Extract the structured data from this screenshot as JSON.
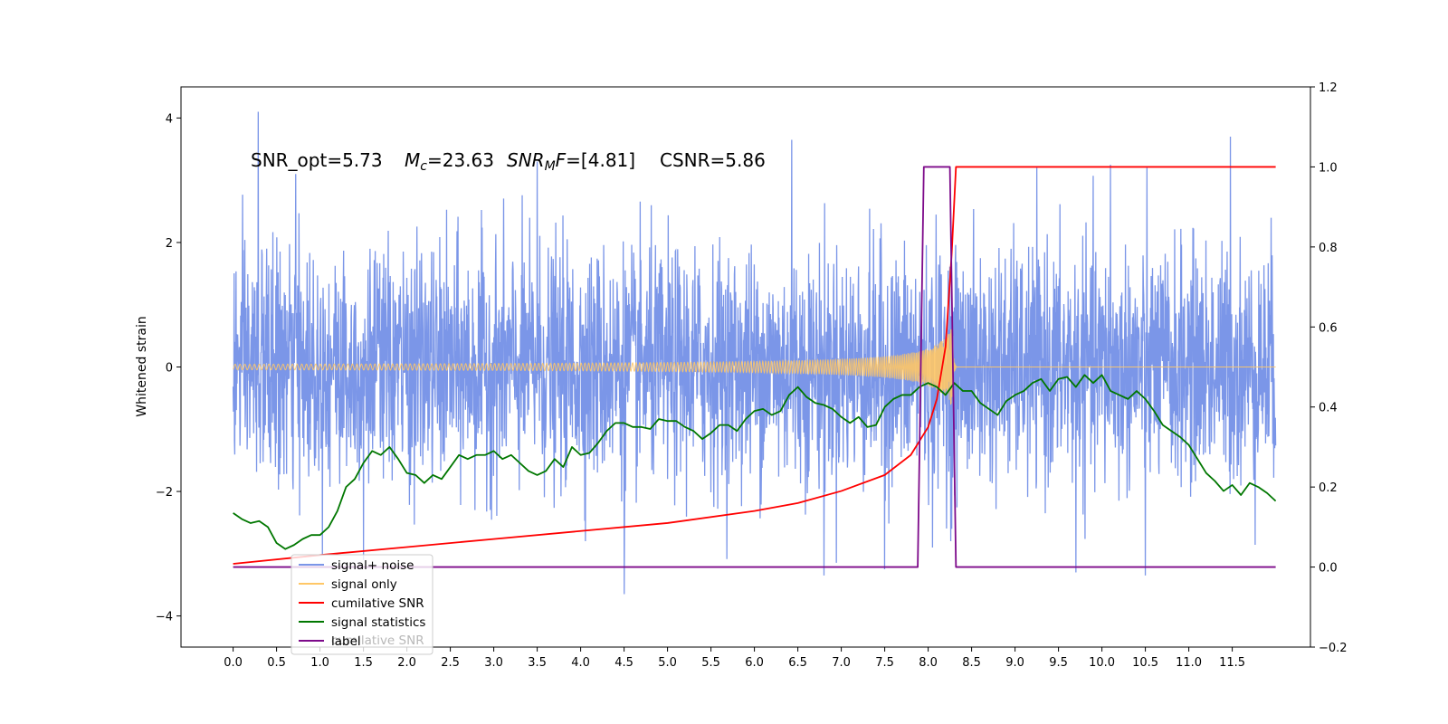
{
  "chart_data": {
    "type": "line",
    "xlabel": "",
    "ylabel": "Whitened strain",
    "xlim": [
      -0.6,
      12.4
    ],
    "ylim": [
      -4.5,
      4.5
    ],
    "y2lim": [
      -0.2,
      1.2
    ],
    "x_ticks": [
      "0.0",
      "0.5",
      "1.0",
      "1.5",
      "2.0",
      "2.5",
      "3.0",
      "3.5",
      "4.0",
      "4.5",
      "5.0",
      "5.5",
      "6.0",
      "6.5",
      "7.0",
      "7.5",
      "8.0",
      "8.5",
      "9.0",
      "9.5",
      "10.0",
      "10.5",
      "11.0",
      "11.5"
    ],
    "y_ticks": [
      "4",
      "2",
      "0",
      "−2",
      "−4"
    ],
    "y2_ticks": [
      "1.2",
      "1.0",
      "0.8",
      "0.6",
      "0.4",
      "0.2",
      "0.0",
      "−0.2"
    ],
    "annotation": {
      "snr_opt": "SNR_opt=5.73",
      "mc_symbol": "M",
      "mc_sub": "c",
      "mc_value": "=23.63",
      "snr_mf_symbol": "SNR",
      "snr_mf_sub": "M",
      "snr_mf_f": "F",
      "snr_mf_value": "=[4.81]",
      "csnr": "CSNR=5.86"
    },
    "legend": {
      "placement": "lower-left",
      "ghost_text": "cumilative SNR",
      "entries": [
        {
          "label": "signal+ noise",
          "color": "#7b96e8"
        },
        {
          "label": "signal only",
          "color": "#ffc766"
        },
        {
          "label": "cumilative SNR",
          "color": "#ff0000"
        },
        {
          "label": "signal statistics",
          "color": "#007700"
        },
        {
          "label": "label",
          "color": "#7d0a8a"
        }
      ]
    },
    "series": [
      {
        "name": "signal+ noise",
        "axis": "left",
        "color": "#7b96e8",
        "x_range": [
          0,
          12.0
        ],
        "description_values": {
          "typical_std": 1.0,
          "max_peak": 4.1,
          "min_peak": -3.65
        },
        "peaks": [
          {
            "x": 0.29,
            "y": 4.1
          },
          {
            "x": 6.43,
            "y": 3.65
          },
          {
            "x": 11.48,
            "y": 3.7
          },
          {
            "x": 3.5,
            "y": 3.3
          },
          {
            "x": 10.1,
            "y": 3.25
          },
          {
            "x": 0.72,
            "y": 3.1
          },
          {
            "x": 4.5,
            "y": -3.65
          },
          {
            "x": 6.8,
            "y": -3.35
          },
          {
            "x": 10.5,
            "y": -3.35
          },
          {
            "x": 7.5,
            "y": -3.25
          },
          {
            "x": 9.7,
            "y": -3.3
          },
          {
            "x": 1.5,
            "y": -3.1
          },
          {
            "x": 8.05,
            "y": -2.9
          },
          {
            "x": 8.27,
            "y": -2.6
          }
        ]
      },
      {
        "name": "signal only",
        "axis": "left",
        "color": "#ffc766",
        "chirp": {
          "start": 0.0,
          "merger": 8.27,
          "end": 12.0,
          "peak_amplitude": 0.62
        }
      },
      {
        "name": "cumilative SNR",
        "axis": "right",
        "color": "#ff0000",
        "x": [
          0.0,
          1.0,
          2.0,
          3.0,
          4.0,
          5.0,
          6.0,
          6.5,
          7.0,
          7.5,
          7.8,
          8.0,
          8.1,
          8.2,
          8.27,
          8.32,
          12.0
        ],
        "y": [
          0.008,
          0.03,
          0.05,
          0.07,
          0.09,
          0.11,
          0.14,
          0.16,
          0.19,
          0.23,
          0.28,
          0.35,
          0.42,
          0.55,
          0.78,
          1.0,
          1.0
        ]
      },
      {
        "name": "signal statistics",
        "axis": "right",
        "color": "#007700",
        "x": [
          0.0,
          0.1,
          0.2,
          0.3,
          0.4,
          0.5,
          0.6,
          0.7,
          0.8,
          0.9,
          1.0,
          1.1,
          1.2,
          1.3,
          1.4,
          1.5,
          1.6,
          1.7,
          1.8,
          1.9,
          2.0,
          2.1,
          2.2,
          2.3,
          2.4,
          2.5,
          2.6,
          2.7,
          2.8,
          2.9,
          3.0,
          3.1,
          3.2,
          3.3,
          3.4,
          3.5,
          3.6,
          3.7,
          3.8,
          3.9,
          4.0,
          4.1,
          4.2,
          4.3,
          4.4,
          4.5,
          4.6,
          4.7,
          4.8,
          4.9,
          5.0,
          5.1,
          5.2,
          5.3,
          5.4,
          5.5,
          5.6,
          5.7,
          5.8,
          5.9,
          6.0,
          6.1,
          6.2,
          6.3,
          6.4,
          6.5,
          6.6,
          6.7,
          6.8,
          6.9,
          7.0,
          7.1,
          7.2,
          7.3,
          7.4,
          7.5,
          7.6,
          7.7,
          7.8,
          7.9,
          8.0,
          8.1,
          8.2,
          8.3,
          8.4,
          8.5,
          8.6,
          8.7,
          8.8,
          8.9,
          9.0,
          9.1,
          9.2,
          9.3,
          9.4,
          9.5,
          9.6,
          9.7,
          9.8,
          9.9,
          10.0,
          10.1,
          10.2,
          10.3,
          10.4,
          10.5,
          10.6,
          10.7,
          10.8,
          10.9,
          11.0,
          11.1,
          11.2,
          11.3,
          11.4,
          11.5,
          11.6,
          11.7,
          11.8,
          11.9,
          12.0
        ],
        "y": [
          0.135,
          0.12,
          0.11,
          0.115,
          0.1,
          0.06,
          0.045,
          0.055,
          0.07,
          0.08,
          0.08,
          0.1,
          0.14,
          0.2,
          0.22,
          0.26,
          0.29,
          0.28,
          0.3,
          0.27,
          0.235,
          0.23,
          0.21,
          0.23,
          0.22,
          0.25,
          0.28,
          0.27,
          0.28,
          0.28,
          0.29,
          0.27,
          0.28,
          0.26,
          0.24,
          0.23,
          0.24,
          0.27,
          0.25,
          0.3,
          0.28,
          0.285,
          0.31,
          0.34,
          0.36,
          0.36,
          0.35,
          0.35,
          0.345,
          0.37,
          0.365,
          0.365,
          0.35,
          0.34,
          0.32,
          0.335,
          0.355,
          0.355,
          0.34,
          0.37,
          0.39,
          0.395,
          0.38,
          0.39,
          0.43,
          0.45,
          0.425,
          0.41,
          0.405,
          0.395,
          0.375,
          0.36,
          0.375,
          0.35,
          0.355,
          0.4,
          0.42,
          0.43,
          0.43,
          0.45,
          0.46,
          0.45,
          0.43,
          0.46,
          0.44,
          0.44,
          0.41,
          0.395,
          0.38,
          0.415,
          0.43,
          0.44,
          0.46,
          0.47,
          0.44,
          0.47,
          0.475,
          0.45,
          0.48,
          0.46,
          0.48,
          0.44,
          0.43,
          0.42,
          0.44,
          0.42,
          0.39,
          0.355,
          0.34,
          0.325,
          0.305,
          0.27,
          0.235,
          0.215,
          0.19,
          0.205,
          0.18,
          0.21,
          0.2,
          0.185,
          0.165
        ]
      },
      {
        "name": "label",
        "axis": "right",
        "color": "#7d0a8a",
        "x": [
          0.0,
          7.88,
          7.95,
          8.25,
          8.32,
          12.0
        ],
        "y": [
          0.0,
          0.0,
          1.0,
          1.0,
          0.0,
          0.0
        ]
      }
    ]
  }
}
